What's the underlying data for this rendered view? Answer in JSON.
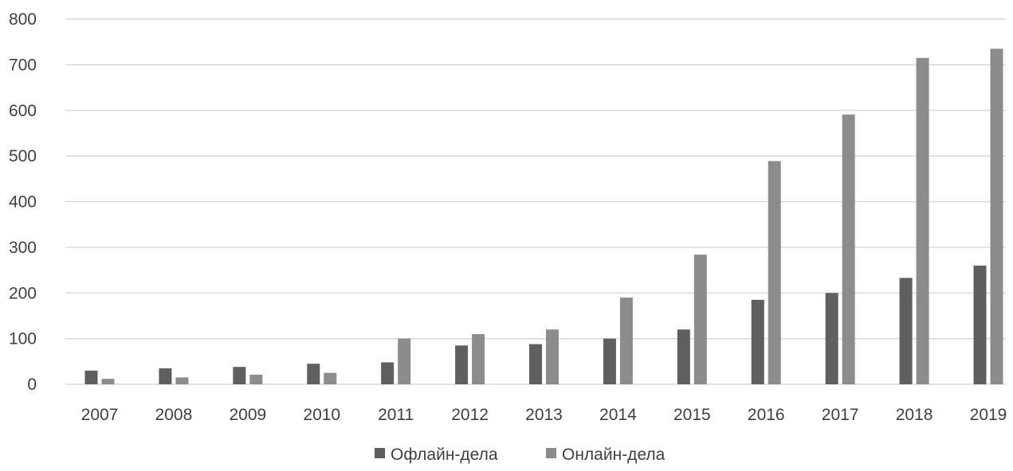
{
  "chart_data": {
    "type": "bar",
    "categories": [
      "2007",
      "2008",
      "2009",
      "2010",
      "2011",
      "2012",
      "2013",
      "2014",
      "2015",
      "2016",
      "2017",
      "2018",
      "2019"
    ],
    "series": [
      {
        "name": "Офлайн-дела",
        "color": "#5f5f5f",
        "values": [
          30,
          35,
          38,
          45,
          48,
          85,
          88,
          100,
          120,
          185,
          200,
          233,
          260
        ]
      },
      {
        "name": "Онлайн-дела",
        "color": "#8c8c8c",
        "values": [
          12,
          15,
          21,
          25,
          100,
          110,
          120,
          190,
          284,
          489,
          591,
          715,
          735
        ]
      }
    ],
    "yticks": [
      "0",
      "100",
      "200",
      "300",
      "400",
      "500",
      "600",
      "700",
      "800"
    ],
    "ylim": [
      0,
      800
    ],
    "grid": true,
    "legend_position": "bottom",
    "title": "",
    "xlabel": "",
    "ylabel": ""
  }
}
